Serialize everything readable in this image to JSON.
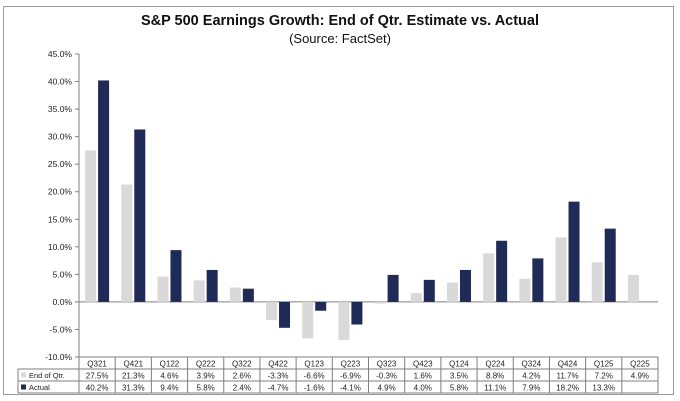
{
  "chart_data": {
    "type": "bar",
    "title": "S&P 500 Earnings Growth: End of Qtr. Estimate vs. Actual",
    "subtitle": "(Source: FactSet)",
    "categories": [
      "Q321",
      "Q421",
      "Q122",
      "Q222",
      "Q322",
      "Q422",
      "Q123",
      "Q223",
      "Q323",
      "Q423",
      "Q124",
      "Q224",
      "Q324",
      "Q424",
      "Q125",
      "Q225"
    ],
    "series": [
      {
        "name": "End of Qtr.",
        "color": "#d9d9d9",
        "values": [
          27.5,
          21.3,
          4.6,
          3.9,
          2.6,
          -3.3,
          -6.6,
          -6.9,
          -0.3,
          1.6,
          3.5,
          8.8,
          4.2,
          11.7,
          7.2,
          4.9
        ],
        "labels": [
          "27.5%",
          "21.3%",
          "4.6%",
          "3.9%",
          "2.6%",
          "-3.3%",
          "-6.6%",
          "-6.9%",
          "-0.3%",
          "1.6%",
          "3.5%",
          "8.8%",
          "4.2%",
          "11.7%",
          "7.2%",
          "4.9%"
        ]
      },
      {
        "name": "Actual",
        "color": "#1f2a56",
        "values": [
          40.2,
          31.3,
          9.4,
          5.8,
          2.4,
          -4.7,
          -1.6,
          -4.1,
          4.9,
          4.0,
          5.8,
          11.1,
          7.9,
          18.2,
          13.3,
          null
        ],
        "labels": [
          "40.2%",
          "31.3%",
          "9.4%",
          "5.8%",
          "2.4%",
          "-4.7%",
          "-1.6%",
          "-4.1%",
          "4.9%",
          "4.0%",
          "5.8%",
          "11.1%",
          "7.9%",
          "18.2%",
          "13.3%",
          ""
        ]
      }
    ],
    "ylim": [
      -10,
      45
    ],
    "yticks": [
      -10,
      -5,
      0,
      5,
      10,
      15,
      20,
      25,
      30,
      35,
      40,
      45
    ],
    "ytick_labels": [
      "-10.0%",
      "-5.0%",
      "0.0%",
      "5.0%",
      "10.0%",
      "15.0%",
      "20.0%",
      "25.0%",
      "30.0%",
      "35.0%",
      "40.0%",
      "45.0%"
    ],
    "grid": false,
    "legend": "data-table"
  }
}
